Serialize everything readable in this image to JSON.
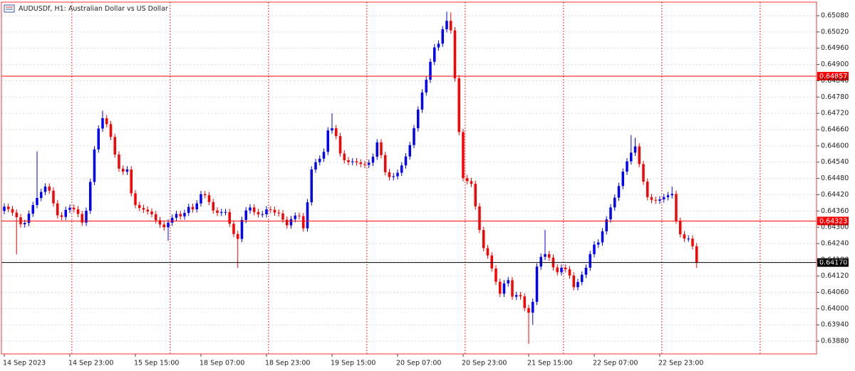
{
  "chart_data": {
    "type": "candlestick",
    "title": "AUDUSDf, H1:  Australian Dollar vs US Dollar",
    "categories": [
      "14 Sep 2023",
      null,
      null,
      null,
      null,
      null,
      null,
      null,
      null,
      null,
      null,
      null,
      null,
      null,
      null,
      null,
      "14 Sep 23:00",
      null,
      null,
      null,
      null,
      null,
      null,
      null,
      null,
      null,
      null,
      null,
      null,
      null,
      null,
      null,
      "15 Sep 15:00",
      null,
      null,
      null,
      null,
      null,
      null,
      null,
      null,
      null,
      null,
      null,
      null,
      null,
      null,
      null,
      "18 Sep 07:00",
      null,
      null,
      null,
      null,
      null,
      null,
      null,
      null,
      null,
      null,
      null,
      null,
      null,
      null,
      null,
      "18 Sep 23:00",
      null,
      null,
      null,
      null,
      null,
      null,
      null,
      null,
      null,
      null,
      null,
      null,
      null,
      null,
      null,
      "19 Sep 15:00",
      null,
      null,
      null,
      null,
      null,
      null,
      null,
      null,
      null,
      null,
      null,
      null,
      null,
      null,
      null,
      "20 Sep 07:00",
      null,
      null,
      null,
      null,
      null,
      null,
      null,
      null,
      null,
      null,
      null,
      null,
      null,
      null,
      null,
      "20 Sep 23:00",
      null,
      null,
      null,
      null,
      null,
      null,
      null,
      null,
      null,
      null,
      null,
      null,
      null,
      null,
      null,
      "21 Sep 15:00",
      null,
      null,
      null,
      null,
      null,
      null,
      null,
      null,
      null,
      null,
      null,
      null,
      null,
      null,
      null,
      "22 Sep 07:00",
      null,
      null,
      null,
      null,
      null,
      null,
      null,
      null,
      null,
      null,
      null,
      null,
      null,
      null,
      null,
      "22 Sep 23:00",
      null,
      null,
      null,
      null,
      null,
      null,
      null,
      null,
      null
    ],
    "open": [
      0.6436,
      0.64376,
      0.64367,
      0.64354,
      0.64337,
      0.64311,
      0.64316,
      0.6435,
      0.64382,
      0.64408,
      0.6443,
      0.6445,
      0.64435,
      0.64388,
      0.64344,
      0.64338,
      0.64364,
      0.64372,
      0.64366,
      0.64349,
      0.64317,
      0.64361,
      0.64467,
      0.64587,
      0.64664,
      0.64702,
      0.6468,
      0.64633,
      0.64568,
      0.64516,
      0.64505,
      0.64513,
      0.64425,
      0.64382,
      0.64371,
      0.64365,
      0.64358,
      0.64348,
      0.64326,
      0.6431,
      0.643,
      0.64317,
      0.64335,
      0.64349,
      0.6434,
      0.64353,
      0.64375,
      0.64366,
      0.64388,
      0.64422,
      0.64418,
      0.64393,
      0.64362,
      0.64353,
      0.64356,
      0.64356,
      0.64313,
      0.64275,
      0.64257,
      0.64327,
      0.64362,
      0.64373,
      0.64356,
      0.64348,
      0.64348,
      0.64366,
      0.64364,
      0.64354,
      0.64351,
      0.64328,
      0.64307,
      0.6433,
      0.64343,
      0.64341,
      0.64296,
      0.64392,
      0.64513,
      0.6454,
      0.64553,
      0.64578,
      0.64657,
      0.64665,
      0.64636,
      0.64572,
      0.64547,
      0.6454,
      0.64543,
      0.64539,
      0.64533,
      0.6453,
      0.64538,
      0.6456,
      0.64613,
      0.64566,
      0.64503,
      0.64485,
      0.64488,
      0.64501,
      0.64528,
      0.64561,
      0.64603,
      0.64665,
      0.64734,
      0.64797,
      0.64844,
      0.6491,
      0.64963,
      0.64977,
      0.6503,
      0.65061,
      0.65026,
      0.64849,
      0.64651,
      0.64481,
      0.6447,
      0.6446,
      0.64377,
      0.6429,
      0.64223,
      0.64196,
      0.64148,
      0.64099,
      0.64055,
      0.64093,
      0.64105,
      0.64044,
      0.6405,
      0.64045,
      0.64002,
      0.63985,
      0.64025,
      0.64155,
      0.64191,
      0.64201,
      0.64188,
      0.64152,
      0.64134,
      0.64151,
      0.64145,
      0.64122,
      0.64079,
      0.64098,
      0.64125,
      0.64151,
      0.64201,
      0.64236,
      0.64244,
      0.64285,
      0.64329,
      0.64373,
      0.64409,
      0.64452,
      0.64505,
      0.64543,
      0.64575,
      0.64598,
      0.64533,
      0.64468,
      0.64411,
      0.64401,
      0.64398,
      0.64403,
      0.64411,
      0.64418,
      0.64423,
      0.64324,
      0.64274,
      0.64258,
      0.64258,
      0.6423
    ],
    "high": [
      0.64388,
      0.64388,
      0.64379,
      0.64366,
      0.64349,
      0.64328,
      0.64362,
      0.64394,
      0.6458,
      0.64442,
      0.64462,
      0.64462,
      0.64447,
      0.644,
      0.64356,
      0.64376,
      0.64384,
      0.64384,
      0.64378,
      0.64361,
      0.64373,
      0.64479,
      0.64599,
      0.64676,
      0.6473,
      0.64714,
      0.64692,
      0.64645,
      0.6458,
      0.64528,
      0.64525,
      0.64525,
      0.64437,
      0.64394,
      0.64383,
      0.64377,
      0.6437,
      0.6436,
      0.64338,
      0.64322,
      0.64329,
      0.64347,
      0.64361,
      0.64361,
      0.64365,
      0.64387,
      0.64387,
      0.644,
      0.64434,
      0.64434,
      0.6443,
      0.64405,
      0.64374,
      0.64368,
      0.64368,
      0.64368,
      0.64325,
      0.64287,
      0.64339,
      0.64374,
      0.64385,
      0.64385,
      0.64368,
      0.6436,
      0.64378,
      0.64378,
      0.64376,
      0.64366,
      0.64363,
      0.6434,
      0.64342,
      0.64355,
      0.64355,
      0.64353,
      0.64404,
      0.64525,
      0.64552,
      0.64565,
      0.6459,
      0.64669,
      0.6472,
      0.64677,
      0.64648,
      0.64584,
      0.64559,
      0.64555,
      0.64555,
      0.64551,
      0.64545,
      0.6455,
      0.64572,
      0.64625,
      0.64625,
      0.64578,
      0.64515,
      0.645,
      0.64513,
      0.6454,
      0.64573,
      0.64615,
      0.64677,
      0.64746,
      0.64809,
      0.64856,
      0.64922,
      0.64975,
      0.64989,
      0.65042,
      0.65095,
      0.65092,
      0.65038,
      0.64861,
      0.64663,
      0.64493,
      0.64482,
      0.64472,
      0.64389,
      0.64302,
      0.64235,
      0.64208,
      0.6416,
      0.64111,
      0.64105,
      0.64117,
      0.64117,
      0.64062,
      0.64062,
      0.64057,
      0.64014,
      0.64037,
      0.64167,
      0.64203,
      0.6429,
      0.64213,
      0.642,
      0.64164,
      0.64163,
      0.64163,
      0.64157,
      0.64134,
      0.6411,
      0.64137,
      0.64163,
      0.64213,
      0.64248,
      0.64256,
      0.64297,
      0.64341,
      0.64385,
      0.64421,
      0.64464,
      0.64517,
      0.64555,
      0.6464,
      0.6463,
      0.6461,
      0.64545,
      0.6448,
      0.64423,
      0.64413,
      0.64415,
      0.64423,
      0.6443,
      0.6445,
      0.64435,
      0.64336,
      0.64286,
      0.6427,
      0.6427,
      0.64242
    ],
    "low": [
      0.64348,
      0.64355,
      0.64342,
      0.642,
      0.64299,
      0.64299,
      0.64304,
      0.64338,
      0.6437,
      0.64396,
      0.64418,
      0.64423,
      0.64376,
      0.64332,
      0.64326,
      0.64326,
      0.64352,
      0.64354,
      0.64337,
      0.64305,
      0.64305,
      0.64349,
      0.64455,
      0.64575,
      0.64652,
      0.64668,
      0.64621,
      0.64556,
      0.64504,
      0.64493,
      0.64493,
      0.64413,
      0.6437,
      0.64359,
      0.64353,
      0.64346,
      0.64336,
      0.64314,
      0.64298,
      0.64288,
      0.6425,
      0.64305,
      0.64323,
      0.64328,
      0.64328,
      0.64341,
      0.64354,
      0.64354,
      0.64376,
      0.64406,
      0.64381,
      0.6435,
      0.64341,
      0.64341,
      0.64344,
      0.64301,
      0.64263,
      0.6415,
      0.64245,
      0.64315,
      0.6435,
      0.64344,
      0.64336,
      0.64336,
      0.64336,
      0.64352,
      0.64342,
      0.64339,
      0.64316,
      0.64295,
      0.64295,
      0.64318,
      0.64329,
      0.64284,
      0.64284,
      0.6438,
      0.64501,
      0.64528,
      0.64541,
      0.64566,
      0.64645,
      0.64624,
      0.6456,
      0.64535,
      0.64528,
      0.64528,
      0.64527,
      0.64521,
      0.64518,
      0.64518,
      0.64526,
      0.64548,
      0.64554,
      0.64491,
      0.64473,
      0.64473,
      0.64476,
      0.64489,
      0.64516,
      0.64549,
      0.64591,
      0.64653,
      0.64722,
      0.64785,
      0.64832,
      0.64898,
      0.64951,
      0.64965,
      0.65018,
      0.65014,
      0.64837,
      0.64639,
      0.64469,
      0.64458,
      0.64448,
      0.64365,
      0.64278,
      0.64211,
      0.64184,
      0.64136,
      0.64087,
      0.64043,
      0.64043,
      0.64081,
      0.64032,
      0.64032,
      0.64033,
      0.6399,
      0.6387,
      0.6394,
      0.64013,
      0.64143,
      0.64179,
      0.64176,
      0.6414,
      0.64122,
      0.64122,
      0.64133,
      0.6411,
      0.64067,
      0.64067,
      0.64086,
      0.64113,
      0.64139,
      0.64189,
      0.64224,
      0.64232,
      0.64273,
      0.64317,
      0.64361,
      0.64397,
      0.6444,
      0.64493,
      0.64531,
      0.64563,
      0.64521,
      0.64456,
      0.64399,
      0.64389,
      0.64386,
      0.64386,
      0.64391,
      0.64399,
      0.64406,
      0.64312,
      0.64262,
      0.64246,
      0.64246,
      0.64218,
      0.6415
    ],
    "close": [
      0.64376,
      0.64367,
      0.64354,
      0.64337,
      0.64311,
      0.64316,
      0.6435,
      0.64382,
      0.64408,
      0.6443,
      0.6445,
      0.64435,
      0.64388,
      0.64344,
      0.64338,
      0.64364,
      0.64372,
      0.64366,
      0.64349,
      0.64317,
      0.64361,
      0.64467,
      0.64587,
      0.64664,
      0.64702,
      0.6468,
      0.64633,
      0.64568,
      0.64516,
      0.64505,
      0.64513,
      0.64425,
      0.64382,
      0.64371,
      0.64365,
      0.64358,
      0.64348,
      0.64326,
      0.6431,
      0.643,
      0.64317,
      0.64335,
      0.64349,
      0.6434,
      0.64353,
      0.64375,
      0.64366,
      0.64388,
      0.64422,
      0.64418,
      0.64393,
      0.64362,
      0.64353,
      0.64356,
      0.64356,
      0.64313,
      0.64275,
      0.64257,
      0.64327,
      0.64362,
      0.64373,
      0.64356,
      0.64348,
      0.64348,
      0.64366,
      0.64364,
      0.64354,
      0.64351,
      0.64328,
      0.64307,
      0.6433,
      0.64343,
      0.64341,
      0.64296,
      0.64392,
      0.64513,
      0.6454,
      0.64553,
      0.64578,
      0.64657,
      0.64665,
      0.64636,
      0.64572,
      0.64547,
      0.6454,
      0.64543,
      0.64539,
      0.64533,
      0.6453,
      0.64538,
      0.6456,
      0.64613,
      0.64566,
      0.64503,
      0.64485,
      0.64488,
      0.64501,
      0.64528,
      0.64561,
      0.64603,
      0.64665,
      0.64734,
      0.64797,
      0.64844,
      0.6491,
      0.64963,
      0.64977,
      0.6503,
      0.65061,
      0.65026,
      0.64849,
      0.64651,
      0.64481,
      0.6447,
      0.6446,
      0.64377,
      0.6429,
      0.64223,
      0.64196,
      0.64148,
      0.64099,
      0.64055,
      0.64093,
      0.64105,
      0.64044,
      0.6405,
      0.64045,
      0.64002,
      0.63985,
      0.64025,
      0.64155,
      0.64191,
      0.64201,
      0.64188,
      0.64152,
      0.64134,
      0.64151,
      0.64145,
      0.64122,
      0.64079,
      0.64098,
      0.64125,
      0.64151,
      0.64201,
      0.64236,
      0.64244,
      0.64285,
      0.64329,
      0.64373,
      0.64409,
      0.64452,
      0.64505,
      0.64543,
      0.64575,
      0.64598,
      0.64533,
      0.64468,
      0.64411,
      0.64401,
      0.64398,
      0.64403,
      0.64411,
      0.64418,
      0.64423,
      0.64324,
      0.64274,
      0.64258,
      0.64258,
      0.6423,
      0.6417
    ],
    "up_color": "#0000ff",
    "down_color": "#ff0000",
    "ylim": [
      0.63833,
      0.6513
    ],
    "yticks": [
      {
        "value": 0.6508,
        "label": "0.65080"
      },
      {
        "value": 0.6502,
        "label": "0.65020"
      },
      {
        "value": 0.6496,
        "label": "0.64960"
      },
      {
        "value": 0.649,
        "label": "0.64900"
      },
      {
        "value": 0.6484,
        "label": "0.64840"
      },
      {
        "value": 0.6478,
        "label": "0.64780"
      },
      {
        "value": 0.6472,
        "label": "0.64720"
      },
      {
        "value": 0.6466,
        "label": "0.64660"
      },
      {
        "value": 0.646,
        "label": "0.64600"
      },
      {
        "value": 0.6454,
        "label": "0.64540"
      },
      {
        "value": 0.6448,
        "label": "0.64480"
      },
      {
        "value": 0.6442,
        "label": "0.64420"
      },
      {
        "value": 0.6436,
        "label": "0.64360"
      },
      {
        "value": 0.643,
        "label": "0.64300"
      },
      {
        "value": 0.6424,
        "label": "0.64240"
      },
      {
        "value": 0.6418,
        "label": "0.64180"
      },
      {
        "value": 0.6412,
        "label": "0.64120"
      },
      {
        "value": 0.6406,
        "label": "0.64060"
      },
      {
        "value": 0.64,
        "label": "0.64000"
      },
      {
        "value": 0.6394,
        "label": "0.63940"
      },
      {
        "value": 0.6388,
        "label": "0.63880"
      }
    ],
    "grid": true,
    "levels": [
      {
        "value": 0.64857,
        "label": "0.64857",
        "color": "#ff0000"
      },
      {
        "value": 0.64323,
        "label": "0.64323",
        "color": "#ff0000"
      },
      {
        "value": 0.6417,
        "label": "0.64170",
        "color": "#000000"
      }
    ]
  }
}
